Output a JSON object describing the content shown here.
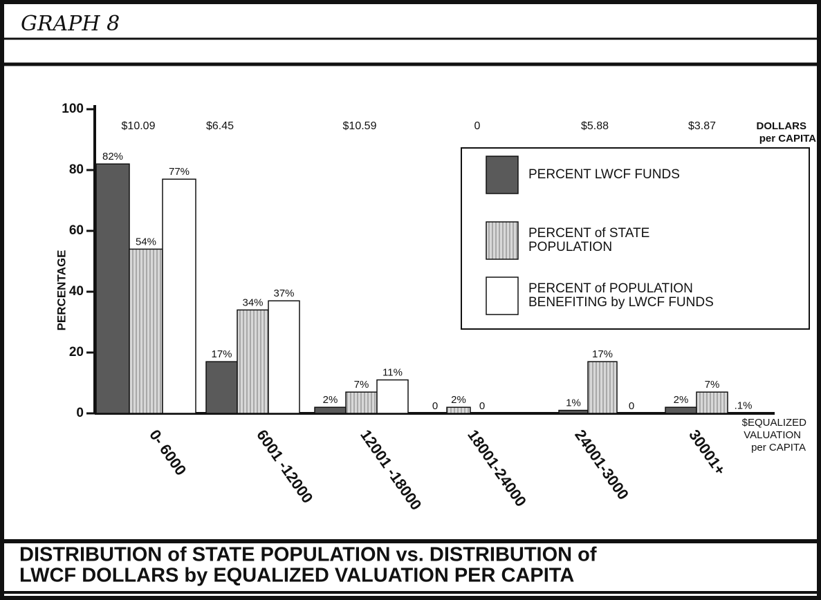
{
  "chart_data": {
    "type": "bar",
    "graph_label": "GRAPH 8",
    "title": [
      "DISTRIBUTION of  STATE POPULATION  vs. DISTRIBUTION   of",
      "LWCF   DOLLARS   by   EQUALIZED   VALUATION  PER  CAPITA"
    ],
    "y_label": "PERCENTAGE",
    "x_label": [
      "$EQUALIZED",
      "VALUATION",
      "per CAPITA"
    ],
    "dollars_label": [
      "DOLLARS",
      "per CAPITA"
    ],
    "dollars_per_capita": [
      "$10.09",
      "$6.45",
      "$10.59",
      "0",
      "$5.88",
      "$3.87"
    ],
    "categories": [
      "0- 6000",
      "6001 -12000",
      "12001 -18000",
      "18001-24000",
      "24001-3000",
      "30001+"
    ],
    "series": [
      {
        "name": "PERCENT  LWCF  FUNDS",
        "color": "#5a5a5a",
        "values": [
          82,
          17,
          2,
          0,
          1,
          2
        ],
        "value_labels": [
          "82%",
          "17%",
          "2%",
          "0",
          "1%",
          "2%"
        ]
      },
      {
        "name": "PERCENT of STATE POPULATION",
        "color": "#d8d8d8",
        "values": [
          54,
          34,
          7,
          2,
          17,
          7
        ],
        "value_labels": [
          "54%",
          "34%",
          "7%",
          "2%",
          "17%",
          "7%"
        ]
      },
      {
        "name": "PERCENT of POPULATION BENEFITING  by  LWCF  FUNDS",
        "color": "#ffffff",
        "values": [
          77,
          37,
          11,
          0,
          0,
          0.1
        ],
        "value_labels": [
          "77%",
          "37%",
          "11%",
          "0",
          "0",
          ".1%"
        ]
      }
    ],
    "ylim": [
      0,
      100
    ],
    "yticks": [
      0,
      20,
      40,
      60,
      80,
      100
    ]
  }
}
